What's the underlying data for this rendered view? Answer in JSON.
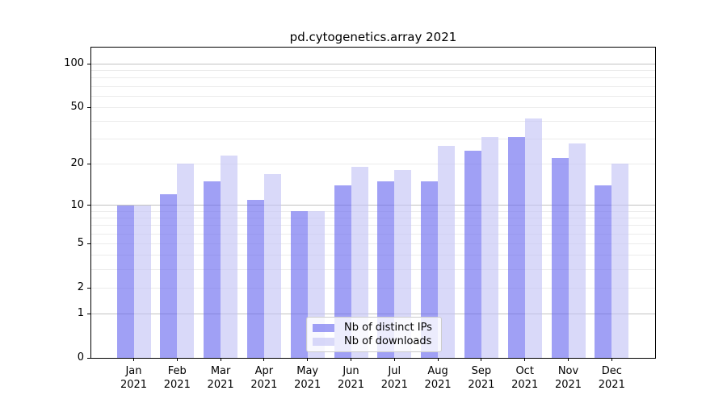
{
  "title": "pd.cytogenetics.array 2021",
  "chart_data": {
    "type": "bar",
    "title": "pd.cytogenetics.array 2021",
    "categories": [
      "Jan",
      "Feb",
      "Mar",
      "Apr",
      "May",
      "Jun",
      "Jul",
      "Aug",
      "Sep",
      "Oct",
      "Nov",
      "Dec"
    ],
    "category_year": "2021",
    "series": [
      {
        "name": "Nb of distinct IPs",
        "color": "#6969ef",
        "alpha": 0.63,
        "values": [
          10,
          12,
          15,
          11,
          9,
          14,
          15,
          15,
          25,
          31,
          22,
          14
        ]
      },
      {
        "name": "Nb of downloads",
        "color": "#c3c3f6",
        "alpha": 0.63,
        "values": [
          10,
          20,
          23,
          17,
          9,
          19,
          18,
          27,
          31,
          42,
          28,
          20
        ]
      }
    ],
    "yscale": "log1p",
    "ylim": [
      0,
      130
    ],
    "y_ticks": [
      0,
      1,
      2,
      5,
      10,
      20,
      50,
      100
    ],
    "y_tick_labels": [
      "0",
      "1",
      "2",
      "5",
      "10",
      "20",
      "50",
      "100"
    ],
    "y_major_gridlines": [
      1,
      10,
      100
    ],
    "y_minor_gridlines": [
      2,
      3,
      4,
      5,
      6,
      7,
      8,
      9,
      20,
      30,
      40,
      50,
      60,
      70,
      80,
      90
    ],
    "grid": true,
    "legend_position": "lower center",
    "colors": {
      "major_grid": "#c2c2c2",
      "minor_grid": "#ebebeb",
      "axis": "#000000",
      "text": "#000000"
    }
  }
}
